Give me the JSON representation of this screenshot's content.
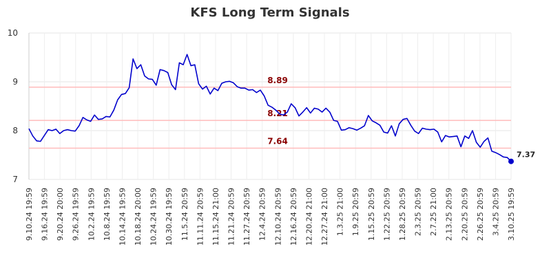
{
  "chart_data": {
    "type": "line",
    "title": "KFS Long Term Signals",
    "xlabel": "",
    "ylabel": "",
    "ylim": [
      7,
      10
    ],
    "yticks": [
      "7",
      "8",
      "9",
      "10"
    ],
    "grid": true,
    "line_color": "#0000cc",
    "ref_line_color": "#ffbbbb",
    "ref_label_color": "#8b0000",
    "reference_lines": [
      {
        "value": 8.89,
        "label": "8.89"
      },
      {
        "value": 8.21,
        "label": "8.21"
      },
      {
        "value": 7.64,
        "label": "7.64"
      }
    ],
    "x_tick_labels": [
      "9.10.24 19:59",
      "9.16.24 19:59",
      "9.20.24 20:00",
      "9.26.24 19:59",
      "10.2.24 19:59",
      "10.8.24 19:59",
      "10.14.24 19:59",
      "10.18.24 20:00",
      "10.24.24 19:59",
      "10.30.24 19:59",
      "11.5.24 20:59",
      "11.11.24 20:59",
      "11.15.24 21:00",
      "11.21.24 20:59",
      "11.27.24 20:59",
      "12.4.24 20:59",
      "12.10.24 20:59",
      "12.16.24 20:59",
      "12.20.24 21:00",
      "12.27.24 21:00",
      "1.3.25 21:00",
      "1.9.25 20:59",
      "1.15.25 20:59",
      "1.22.25 20:59",
      "1.28.25 20:59",
      "2.3.25 20:59",
      "2.7.25 21:00",
      "2.13.25 20:59",
      "2.20.25 20:59",
      "2.26.25 20:59",
      "3.4.25 20:59",
      "3.10.25 19:59"
    ],
    "series": [
      {
        "values": [
          8.04,
          7.89,
          7.79,
          7.78,
          7.9,
          8.02,
          8.0,
          8.03,
          7.94,
          8.0,
          8.02,
          8.0,
          7.99,
          8.1,
          8.27,
          8.22,
          8.19,
          8.32,
          8.23,
          8.24,
          8.29,
          8.28,
          8.42,
          8.63,
          8.74,
          8.76,
          8.88,
          9.47,
          9.27,
          9.35,
          9.12,
          9.06,
          9.05,
          8.93,
          9.25,
          9.23,
          9.19,
          8.94,
          8.84,
          9.39,
          9.35,
          9.56,
          9.33,
          9.35,
          8.96,
          8.85,
          8.91,
          8.75,
          8.87,
          8.82,
          8.97,
          9.0,
          9.01,
          8.98,
          8.9,
          8.87,
          8.87,
          8.83,
          8.84,
          8.78,
          8.83,
          8.71,
          8.52,
          8.48,
          8.42,
          8.34,
          8.32,
          8.38,
          8.55,
          8.47,
          8.3,
          8.38,
          8.47,
          8.36,
          8.46,
          8.44,
          8.38,
          8.46,
          8.38,
          8.21,
          8.19,
          8.01,
          8.02,
          8.06,
          8.04,
          8.01,
          8.05,
          8.1,
          8.31,
          8.2,
          8.16,
          8.11,
          7.97,
          7.95,
          8.1,
          7.89,
          8.14,
          8.23,
          8.25,
          8.11,
          7.99,
          7.94,
          8.05,
          8.03,
          8.02,
          8.03,
          7.97,
          7.77,
          7.9,
          7.87,
          7.88,
          7.89,
          7.67,
          7.89,
          7.84,
          8.0,
          7.76,
          7.66,
          7.78,
          7.85,
          7.58,
          7.55,
          7.51,
          7.46,
          7.45,
          7.37
        ],
        "last_label": "7.37"
      }
    ]
  }
}
